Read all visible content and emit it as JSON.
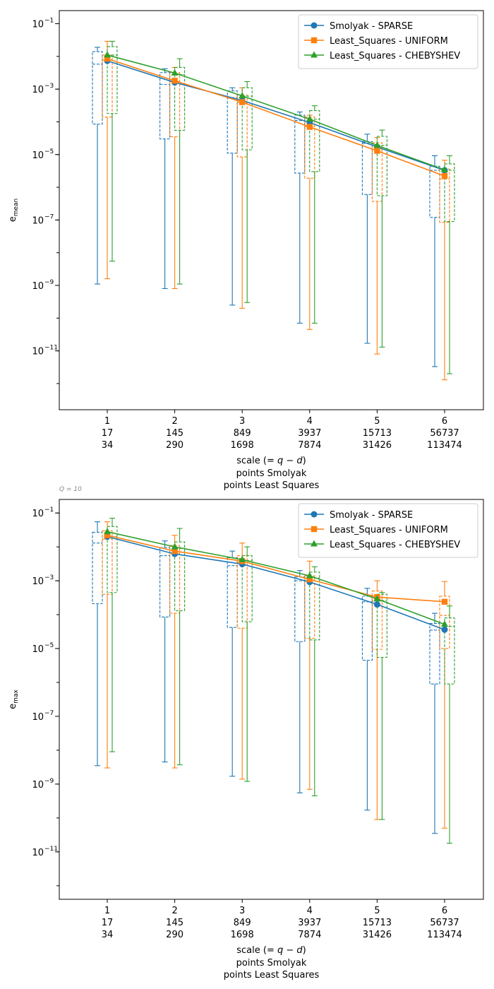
{
  "colors": {
    "smolyak": "#1f77b4",
    "uniform": "#ff7f0e",
    "chebyshev": "#2ca02c"
  },
  "x_ticks": [
    [
      "1",
      "17",
      "34"
    ],
    [
      "2",
      "145",
      "290"
    ],
    [
      "3",
      "849",
      "1698"
    ],
    [
      "4",
      "3937",
      "7874"
    ],
    [
      "5",
      "15713",
      "31426"
    ],
    [
      "6",
      "56737",
      "113474"
    ]
  ],
  "xlabel_lines": [
    "scale ($= q-d$)",
    "points Smolyak",
    "points Least Squares"
  ],
  "chart_data": [
    {
      "type": "line",
      "ylabel_base": "e",
      "ylabel_sub": "mean",
      "yscale": "log",
      "ylim_exp": [
        -12.8,
        -0.6
      ],
      "y_tick_exponents": [
        -11,
        -9,
        -7,
        -5,
        -3,
        -1
      ],
      "y_tick_labels": [
        "10",
        "10",
        "10",
        "10",
        "10",
        "10"
      ],
      "y_tick_sup": [
        "−11",
        "−9",
        "−7",
        "−5",
        "−3",
        "−1"
      ],
      "categories": [
        "1",
        "2",
        "3",
        "4",
        "5",
        "6"
      ],
      "legend_loc": "upper right",
      "series": [
        {
          "name": "Smolyak - SPARSE",
          "key": "smolyak",
          "marker": "circle",
          "values": [
            0.0073,
            0.0016,
            0.00045,
            9.5e-05,
            1.7e-05,
            3.3e-06
          ],
          "box": {
            "whisker_low": [
              1.1e-09,
              8e-10,
              2.5e-10,
              7e-11,
              1.7e-11,
              3.3e-12
            ],
            "q1": [
              8.5e-05,
              3e-05,
              1.1e-05,
              2.7e-06,
              6e-07,
              1.2e-07
            ],
            "median": [
              0.0058,
              0.0014,
              0.00055,
              0.00011,
              2.2e-05,
              3.3e-06
            ],
            "q3": [
              0.014,
              0.0032,
              0.00088,
              0.00016,
              2.5e-05,
              4.4e-06
            ],
            "whisker_high": [
              0.019,
              0.0042,
              0.0011,
              0.0002,
              4.2e-05,
              9.2e-06
            ]
          }
        },
        {
          "name": "Least_Squares - UNIFORM",
          "key": "uniform",
          "marker": "square",
          "values": [
            0.0085,
            0.0018,
            0.0004,
            7e-05,
            1.3e-05,
            2.2e-06
          ],
          "box": {
            "whisker_low": [
              1.6e-09,
              8e-10,
              2e-10,
              4.5e-11,
              8e-12,
              1.3e-12
            ],
            "q1": [
              0.00014,
              3.5e-05,
              8.5e-06,
              1.9e-06,
              3.7e-07,
              8.5e-08
            ],
            "median": [
              0.0078,
              0.0017,
              0.00039,
              7.2e-05,
              1.4e-05,
              1.8e-06
            ],
            "q3": [
              0.011,
              0.0032,
              0.00066,
              0.00014,
              2.3e-05,
              3.6e-06
            ],
            "whisker_high": [
              0.029,
              0.0046,
              0.0011,
              0.00016,
              3.3e-05,
              6.7e-06
            ]
          }
        },
        {
          "name": "Least_Squares - CHEBYSHEV",
          "key": "chebyshev",
          "marker": "triangle",
          "values": [
            0.011,
            0.0031,
            0.00062,
            0.00012,
            1.9e-05,
            3.4e-06
          ],
          "box": {
            "whisker_low": [
              5.5e-09,
              1.1e-09,
              3e-10,
              7e-11,
              1.3e-11,
              2e-12
            ],
            "q1": [
              0.00018,
              5.5e-05,
              1.4e-05,
              3e-06,
              5.5e-07,
              9e-08
            ],
            "median": [
              0.011,
              0.0028,
              0.00061,
              0.00012,
              1.9e-05,
              3.3e-06
            ],
            "q3": [
              0.02,
              0.0046,
              0.0011,
              0.00022,
              3.6e-05,
              5.2e-06
            ],
            "whisker_high": [
              0.029,
              0.0085,
              0.0017,
              0.00031,
              5.6e-05,
              9.2e-06
            ]
          }
        }
      ]
    },
    {
      "type": "line",
      "annotation": "Q = 10",
      "ylabel_base": "e",
      "ylabel_sub": "max",
      "yscale": "log",
      "ylim_exp": [
        -12.4,
        -0.6
      ],
      "y_tick_exponents": [
        -11,
        -9,
        -7,
        -5,
        -3,
        -1
      ],
      "y_tick_labels": [
        "10",
        "10",
        "10",
        "10",
        "10",
        "10"
      ],
      "y_tick_sup": [
        "−11",
        "−9",
        "−7",
        "−5",
        "−3",
        "−1"
      ],
      "categories": [
        "1",
        "2",
        "3",
        "4",
        "5",
        "6"
      ],
      "legend_loc": "upper right",
      "series": [
        {
          "name": "Smolyak - SPARSE",
          "key": "smolyak",
          "marker": "circle",
          "values": [
            0.02,
            0.0062,
            0.0031,
            0.00092,
            0.0002,
            3.6e-05
          ],
          "box": {
            "whisker_low": [
              3.5e-09,
              4.5e-09,
              1.7e-09,
              5.5e-10,
              1.7e-10,
              3.5e-11
            ],
            "q1": [
              0.00021,
              8.5e-05,
              4.2e-05,
              1.6e-05,
              4.5e-06,
              9e-07
            ],
            "median": [
              0.013,
              0.0055,
              0.0028,
              0.001,
              0.00024,
              3.5e-05
            ],
            "q3": [
              0.027,
              0.0095,
              0.0048,
              0.0013,
              0.00035,
              5.5e-05
            ],
            "whisker_high": [
              0.055,
              0.015,
              0.0075,
              0.002,
              0.0006,
              0.00011
            ]
          }
        },
        {
          "name": "Least_Squares - UNIFORM",
          "key": "uniform",
          "marker": "square",
          "values": [
            0.022,
            0.0075,
            0.0038,
            0.0011,
            0.00033,
            0.00024
          ],
          "box": {
            "whisker_low": [
              3e-09,
              3e-09,
              1.4e-09,
              7e-10,
              9e-11,
              5e-11
            ],
            "q1": [
              0.0004,
              0.00011,
              4e-05,
              2e-05,
              9.5e-06,
              1e-05
            ],
            "median": [
              0.017,
              0.0065,
              0.0035,
              0.001,
              0.00025,
              9.5e-05
            ],
            "q3": [
              0.03,
              0.011,
              0.0055,
              0.0014,
              0.0005,
              0.00035
            ],
            "whisker_high": [
              0.055,
              0.022,
              0.013,
              0.0038,
              0.001,
              0.00095
            ]
          }
        },
        {
          "name": "Least_Squares - CHEBYSHEV",
          "key": "chebyshev",
          "marker": "triangle",
          "values": [
            0.028,
            0.01,
            0.0042,
            0.0014,
            0.00029,
            5.2e-05
          ],
          "box": {
            "whisker_low": [
              9e-09,
              3.7e-09,
              1.2e-09,
              4.5e-10,
              9e-11,
              1.8e-11
            ],
            "q1": [
              0.00045,
              0.00013,
              6.2e-05,
              1.8e-05,
              5.5e-06,
              9e-07
            ],
            "median": [
              0.02,
              0.009,
              0.004,
              0.0012,
              0.00026,
              4.5e-05
            ],
            "q3": [
              0.04,
              0.014,
              0.0055,
              0.0018,
              0.0004,
              8e-05
            ],
            "whisker_high": [
              0.07,
              0.035,
              0.01,
              0.0026,
              0.00045,
              0.00018
            ]
          }
        }
      ]
    }
  ]
}
